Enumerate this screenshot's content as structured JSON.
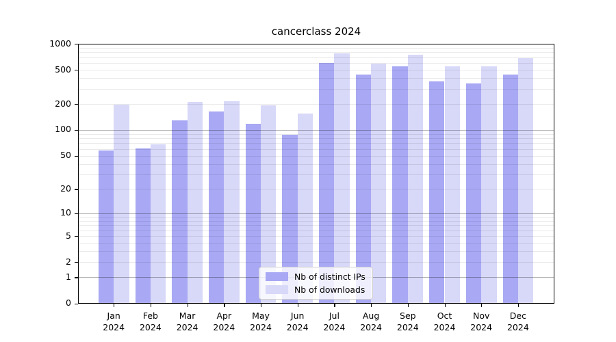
{
  "title": "cancerclass 2024",
  "chart_data": {
    "type": "bar",
    "title": "cancerclass 2024",
    "subtitle": "",
    "xlabel": "",
    "ylabel": "",
    "scale": "log1p (y position proportional to log10(value+1))",
    "grid": "horizontal minor gridlines at 2-9 of each decade, darker lines at 1, 10, 100",
    "legend_position": "bottom-center inside plot",
    "ylim": [
      0,
      1000
    ],
    "y_ticks": [
      0,
      1,
      2,
      5,
      10,
      20,
      50,
      100,
      200,
      500,
      1000
    ],
    "categories": [
      "Jan 2024",
      "Feb 2024",
      "Mar 2024",
      "Apr 2024",
      "May 2024",
      "Jun 2024",
      "Jul 2024",
      "Aug 2024",
      "Sep 2024",
      "Oct 2024",
      "Nov 2024",
      "Dec 2024"
    ],
    "series": [
      {
        "name": "Nb of distinct IPs",
        "color": "#a8a8f4",
        "values": [
          58,
          61,
          130,
          164,
          117,
          88,
          600,
          440,
          548,
          370,
          350,
          440
        ]
      },
      {
        "name": "Nb of downloads",
        "color": "#d8d8f8",
        "values": [
          196,
          68,
          212,
          215,
          192,
          155,
          780,
          592,
          742,
          550,
          550,
          686
        ]
      }
    ]
  },
  "colors": {
    "distinct_ips_bar": "#a8a8f4",
    "downloads_bar": "#d8d8f8",
    "major_gridline": "#b3b3b3",
    "minor_gridline": "#e8e8e8",
    "axis_spine": "#000000"
  },
  "legend": {
    "items": [
      {
        "label": "Nb of distinct IPs"
      },
      {
        "label": "Nb of downloads"
      }
    ]
  }
}
